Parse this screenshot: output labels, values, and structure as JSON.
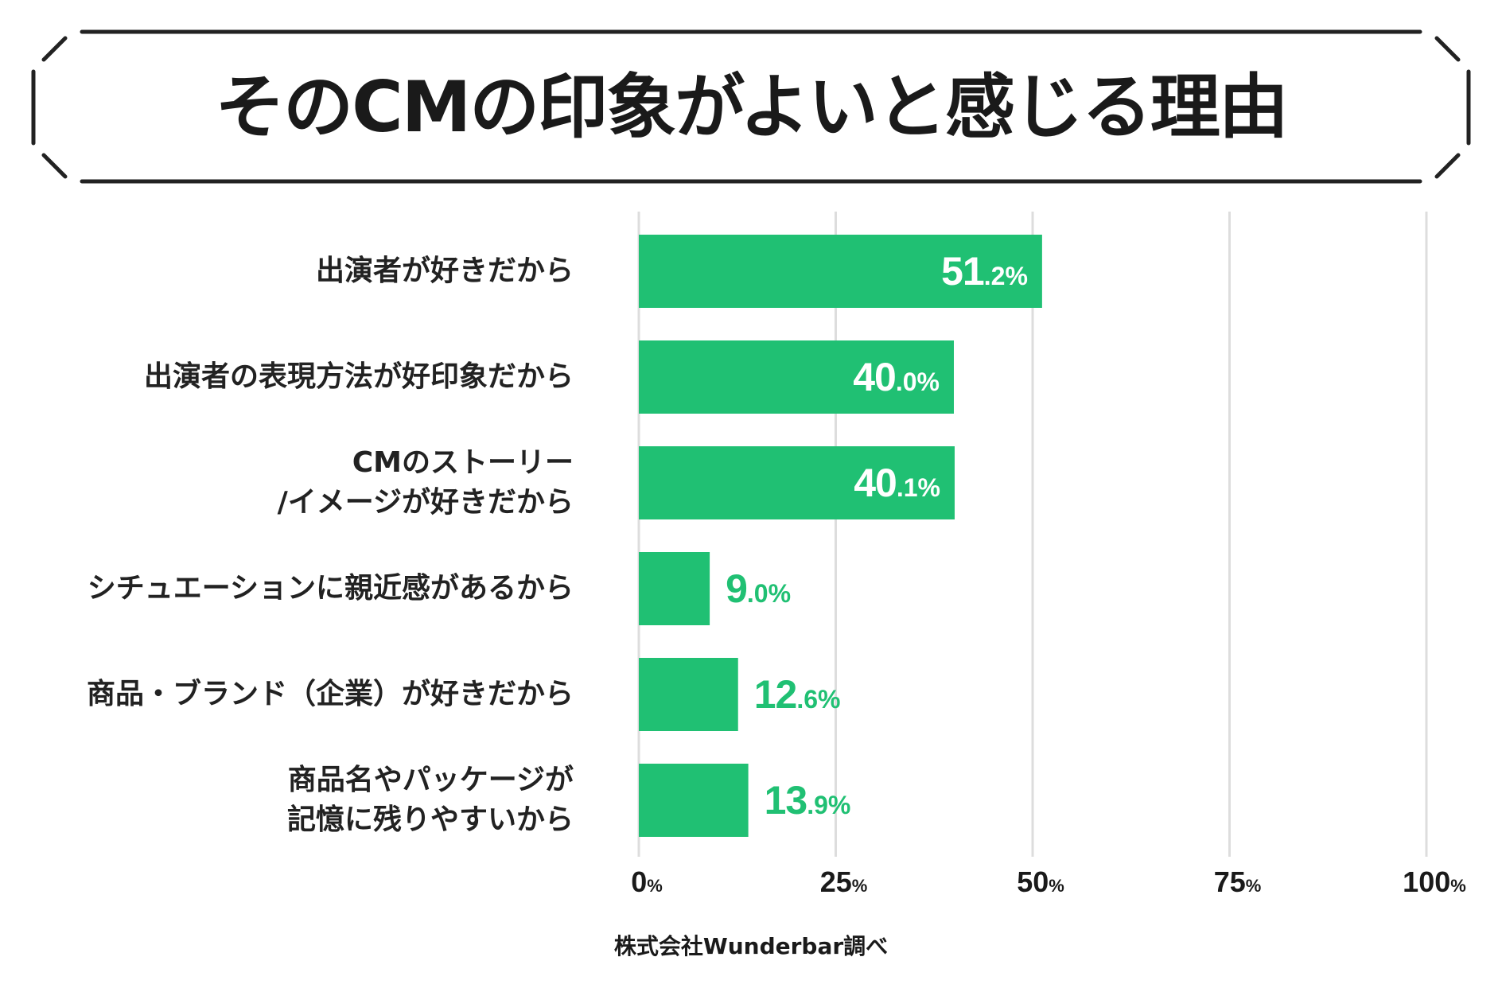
{
  "chart_data": {
    "type": "bar",
    "orientation": "horizontal",
    "title": "そのCMの印象がよいと感じる理由",
    "categories": [
      "出演者が好きだから",
      "出演者の表現方法が好印象だから",
      "CMのストーリー\n/イメージが好きだから",
      "シチュエーションに親近感があるから",
      "商品・ブランド（企業）が好きだから",
      "商品名やパッケージが\n記憶に残りやすいから"
    ],
    "values": [
      51.2,
      40.0,
      40.1,
      9.0,
      12.6,
      13.9
    ],
    "value_labels": [
      [
        "51",
        ".2%"
      ],
      [
        "40",
        ".0%"
      ],
      [
        "40",
        ".1%"
      ],
      [
        "9",
        ".0%"
      ],
      [
        "12",
        ".6%"
      ],
      [
        "13",
        ".9%"
      ]
    ],
    "xlim": [
      0,
      100
    ],
    "xticks": [
      0,
      25,
      50,
      75,
      100
    ],
    "xtick_labels": [
      [
        "0",
        "%"
      ],
      [
        "25",
        "%"
      ],
      [
        "50",
        "%"
      ],
      [
        "75",
        "%"
      ],
      [
        "100",
        "%"
      ]
    ],
    "grid": true,
    "bar_color": "#20c073",
    "grid_color": "#dddddd",
    "source": "株式会社Wunderbar調べ"
  }
}
